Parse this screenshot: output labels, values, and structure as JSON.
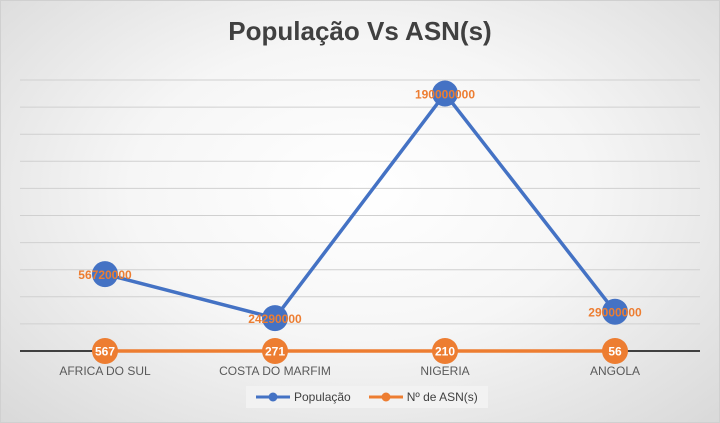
{
  "chart_data": {
    "type": "line",
    "title": "População Vs ASN(s)",
    "categories": [
      "AFRICA DO SUL",
      "COSTA DO MARFIM",
      "NIGERIA",
      "ANGOLA"
    ],
    "series": [
      {
        "name": "População",
        "values": [
          56720000,
          24290000,
          190000000,
          29000000
        ],
        "labels": [
          "56720000",
          "24290000",
          "190000000",
          "29000000"
        ],
        "color": "#4472C4"
      },
      {
        "name": "Nº de ASN(s)",
        "values": [
          567,
          271,
          210,
          56
        ],
        "labels": [
          "567",
          "271",
          "210",
          "56"
        ],
        "color": "#ED7D31"
      }
    ],
    "ylim": [
      0,
      200000000
    ],
    "grid": true,
    "legend": "bottom",
    "label_color": "#ED7D31"
  }
}
